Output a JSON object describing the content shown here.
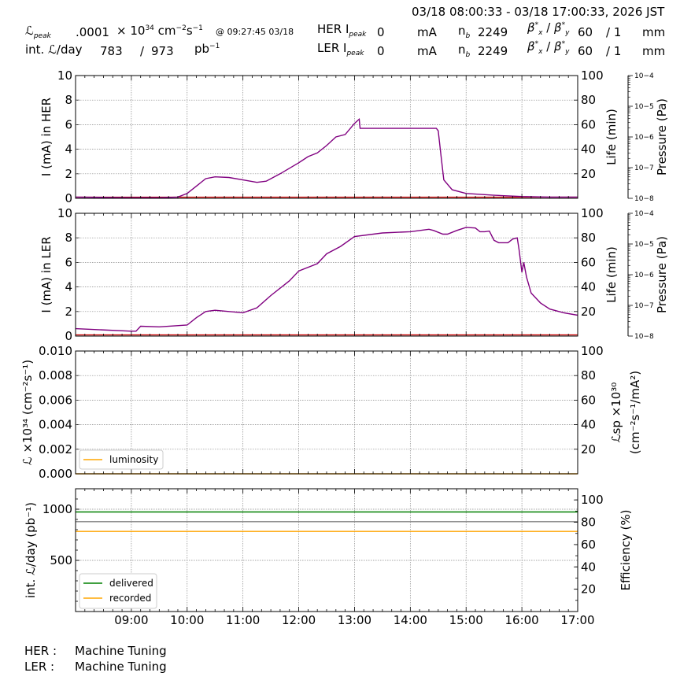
{
  "header": {
    "time_range": "03/18 08:00:33 - 03/18 17:00:33, 2026 JST",
    "lum_peak_label": "ℒ",
    "lum_peak_sub": "peak",
    "lum_peak_value": ".0001",
    "lum_peak_unit_prefix": "× 10",
    "lum_peak_unit_exp": "34",
    "lum_peak_unit_cm": "cm",
    "lum_peak_unit_cm_exp": "−2",
    "lum_peak_unit_s": "s",
    "lum_peak_unit_s_exp": "−1",
    "lum_peak_time": "@ 09:27:45 03/18",
    "int_lum_label": "int. ℒ/day",
    "int_lum_value": "783",
    "int_lum_sep": "/",
    "int_lum_total": "973",
    "int_lum_unit": "pb",
    "int_lum_unit_exp": "−1",
    "her_label": "HER I",
    "her_sub": "peak",
    "her_value": "0",
    "her_unit": "mA",
    "ler_label": "LER I",
    "ler_sub": "peak",
    "ler_value": "0",
    "ler_unit": "mA",
    "nb_label": "n",
    "nb_sub": "b",
    "her_nb": "2249",
    "ler_nb": "2249",
    "beta_label": "β",
    "beta_sub_x": "x",
    "beta_sub_y": "y",
    "beta_sep": "/",
    "beta_star": "*",
    "her_beta_x": "60",
    "her_beta_y": "/ 1",
    "ler_beta_x": "60",
    "ler_beta_y": "/ 1",
    "beta_unit": "mm"
  },
  "footer": {
    "her_label": "HER :",
    "her_status": "Machine Tuning",
    "ler_label": "LER :",
    "ler_status": "Machine Tuning"
  },
  "colors": {
    "current": "#800080",
    "red_trace": "#cc0000",
    "luminosity": "#ffa500",
    "delivered": "#008000",
    "recorded": "#ffa500",
    "efficiency": "#808080",
    "grid": "#888888"
  },
  "chart_data": [
    {
      "id": "her",
      "type": "line",
      "ylabel": "I (mA) in HER",
      "ylabel_right": "Life (min)",
      "ylabel_right2": "Pressure (Pa)",
      "ylim": [
        0,
        10
      ],
      "yticks": [
        "0",
        "2",
        "4",
        "6",
        "8",
        "10"
      ],
      "ylim_right": [
        0,
        100
      ],
      "yticks_right": [
        "20",
        "40",
        "60",
        "80",
        "100"
      ],
      "pressure_ticks": [
        "10−8",
        "10−7",
        "10−6",
        "10−5",
        "10−4"
      ],
      "series": [
        {
          "role": "current",
          "x": [
            "08:00",
            "08:30",
            "09:00",
            "09:30",
            "09:50",
            "10:00",
            "10:10",
            "10:20",
            "10:30",
            "10:45",
            "11:00",
            "11:15",
            "11:25",
            "11:40",
            "12:00",
            "12:10",
            "12:20",
            "12:30",
            "12:40",
            "12:50",
            "13:00",
            "13:05",
            "13:06",
            "13:30",
            "14:00",
            "14:28",
            "14:30",
            "14:33",
            "14:36",
            "14:45",
            "15:00",
            "15:30",
            "16:00",
            "16:30",
            "17:00"
          ],
          "y": [
            0.1,
            0.08,
            0.05,
            0.05,
            0.1,
            0.4,
            1.0,
            1.6,
            1.75,
            1.7,
            1.5,
            1.3,
            1.4,
            2.0,
            2.9,
            3.4,
            3.7,
            4.3,
            5.0,
            5.2,
            6.1,
            6.45,
            5.7,
            5.7,
            5.7,
            5.7,
            5.5,
            3.5,
            1.5,
            0.7,
            0.4,
            0.25,
            0.15,
            0.1,
            0.1
          ]
        }
      ]
    },
    {
      "id": "ler",
      "type": "line",
      "ylabel": "I (mA) in LER",
      "ylabel_right": "Life (min)",
      "ylabel_right2": "Pressure (Pa)",
      "ylim": [
        0,
        10
      ],
      "yticks": [
        "0",
        "2",
        "4",
        "6",
        "8",
        "10"
      ],
      "ylim_right": [
        0,
        100
      ],
      "yticks_right": [
        "20",
        "40",
        "60",
        "80",
        "100"
      ],
      "pressure_ticks": [
        "10−8",
        "10−7",
        "10−6",
        "10−5",
        "10−4"
      ],
      "series": [
        {
          "role": "current",
          "x": [
            "08:00",
            "09:00",
            "09:05",
            "09:10",
            "09:30",
            "10:00",
            "10:10",
            "10:20",
            "10:30",
            "10:45",
            "11:00",
            "11:15",
            "11:30",
            "11:50",
            "12:00",
            "12:20",
            "12:30",
            "12:45",
            "13:00",
            "13:30",
            "14:00",
            "14:20",
            "14:25",
            "14:35",
            "14:40",
            "14:50",
            "15:00",
            "15:10",
            "15:15",
            "15:20",
            "15:25",
            "15:30",
            "15:35",
            "15:45",
            "15:50",
            "15:55",
            "15:57",
            "16:00",
            "16:02",
            "16:05",
            "16:10",
            "16:20",
            "16:30",
            "16:45",
            "17:00"
          ],
          "y": [
            0.6,
            0.4,
            0.4,
            0.8,
            0.75,
            0.9,
            1.5,
            2.0,
            2.1,
            2.0,
            1.9,
            2.3,
            3.3,
            4.5,
            5.3,
            5.9,
            6.7,
            7.3,
            8.1,
            8.4,
            8.5,
            8.7,
            8.6,
            8.3,
            8.3,
            8.6,
            8.85,
            8.8,
            8.5,
            8.5,
            8.55,
            7.8,
            7.6,
            7.6,
            7.9,
            8.0,
            7.0,
            5.2,
            6.0,
            4.8,
            3.5,
            2.7,
            2.2,
            1.9,
            1.7
          ]
        }
      ]
    },
    {
      "id": "lum",
      "type": "line",
      "ylabel": "ℒ ×10³⁴ (cm⁻²s⁻¹)",
      "ylabel_right": "ℒsp ×10³⁰",
      "ylabel_right2": "(cm⁻²s⁻¹/mA²)",
      "ylim": [
        0,
        0.01
      ],
      "yticks": [
        "0.000",
        "0.002",
        "0.004",
        "0.006",
        "0.008",
        "0.010"
      ],
      "ylim_right": [
        0,
        100
      ],
      "yticks_right": [
        "20",
        "40",
        "60",
        "80",
        "100"
      ],
      "series": [
        {
          "name": "luminosity",
          "x": [
            "08:00",
            "17:00"
          ],
          "y": [
            0,
            0
          ]
        }
      ]
    },
    {
      "id": "intlum",
      "type": "line",
      "ylabel": "int. ℒ/day (pb⁻¹)",
      "ylabel_right": "Efficiency (%)",
      "ylim": [
        0,
        1200
      ],
      "yticks": [
        "500",
        "1000"
      ],
      "ylim_right": [
        0,
        110
      ],
      "yticks_right": [
        "20",
        "40",
        "60",
        "80",
        "100"
      ],
      "series": [
        {
          "name": "delivered",
          "x": [
            "08:00",
            "17:00"
          ],
          "y": [
            973,
            973
          ]
        },
        {
          "name": "recorded",
          "x": [
            "08:00",
            "17:00"
          ],
          "y": [
            783,
            783
          ]
        },
        {
          "role": "efficiency",
          "x": [
            "08:00",
            "17:00"
          ],
          "y": [
            80.5,
            80.5
          ]
        }
      ]
    }
  ],
  "x_ticks": [
    "09:00",
    "10:00",
    "11:00",
    "12:00",
    "13:00",
    "14:00",
    "15:00",
    "16:00",
    "17:00"
  ]
}
